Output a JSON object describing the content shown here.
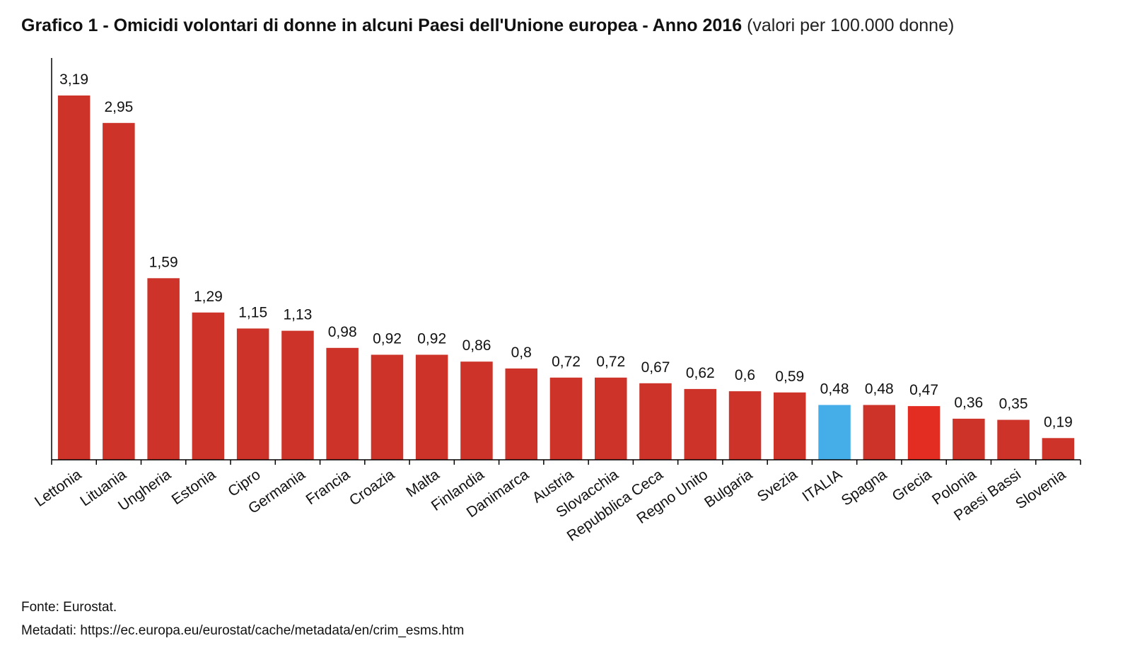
{
  "title": {
    "main": "Grafico 1 - Omicidi volontari di donne in alcuni Paesi dell'Unione europea - Anno 2016",
    "unit": "(valori per 100.000 donne)"
  },
  "footer": {
    "source": "Fonte: Eurostat.",
    "metadata": "Metadati: https://ec.europa.eu/eurostat/cache/metadata/en/crim_esms.htm"
  },
  "chart_data": {
    "type": "bar",
    "title": "Grafico 1 - Omicidi volontari di donne in alcuni Paesi dell'Unione europea - Anno 2016 (valori per 100.000 donne)",
    "xlabel": "",
    "ylabel": "",
    "ylim": [
      0,
      3.5
    ],
    "grid": false,
    "decimal_separator": ",",
    "categories": [
      "Lettonia",
      "Lituania",
      "Ungheria",
      "Estonia",
      "Cipro",
      "Germania",
      "Francia",
      "Croazia",
      "Malta",
      "Finlandia",
      "Danimarca",
      "Austria",
      "Slovacchia",
      "Repubblica Ceca",
      "Regno Unito",
      "Bulgaria",
      "Svezia",
      "ITALIA",
      "Spagna",
      "Grecia",
      "Polonia",
      "Paesi Bassi",
      "Slovenia"
    ],
    "values": [
      3.19,
      2.95,
      1.59,
      1.29,
      1.15,
      1.13,
      0.98,
      0.92,
      0.92,
      0.86,
      0.8,
      0.72,
      0.72,
      0.67,
      0.62,
      0.6,
      0.59,
      0.48,
      0.48,
      0.47,
      0.36,
      0.35,
      0.19
    ],
    "bar_colors": [
      "#cd3329",
      "#cd3329",
      "#cd3329",
      "#cd3329",
      "#cd3329",
      "#cd3329",
      "#cd3329",
      "#cd3329",
      "#cd3329",
      "#cd3329",
      "#cd3329",
      "#cd3329",
      "#cd3329",
      "#cd3329",
      "#cd3329",
      "#cd3329",
      "#cd3329",
      "#45aee8",
      "#cd3329",
      "#e32d22",
      "#cd3329",
      "#cd3329",
      "#cd3329"
    ]
  }
}
